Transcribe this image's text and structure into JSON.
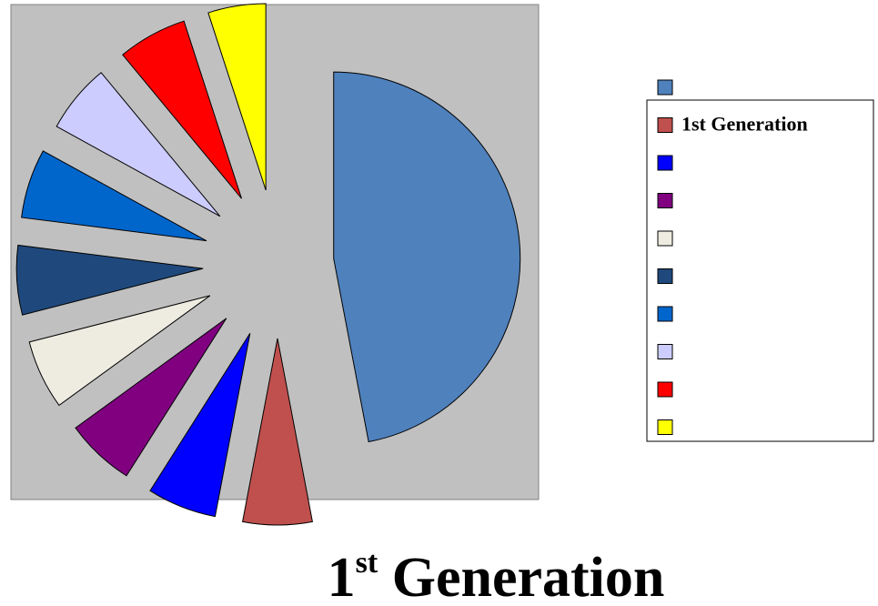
{
  "chart_data": {
    "type": "pie",
    "title_parts": [
      "1",
      "st",
      " Generation"
    ],
    "categories": [
      null,
      "1st Generation",
      null,
      null,
      null,
      null,
      null,
      null,
      null,
      null
    ],
    "values": [
      47,
      6,
      6,
      6,
      6,
      6,
      6,
      6,
      6,
      5
    ],
    "colors": [
      "#4f81bd",
      "#c0504d",
      "#0000ff",
      "#800080",
      "#eeece1",
      "#1f497d",
      "#0066cc",
      "#ccccff",
      "#ff0000",
      "#ffff00"
    ],
    "legend": "right"
  }
}
